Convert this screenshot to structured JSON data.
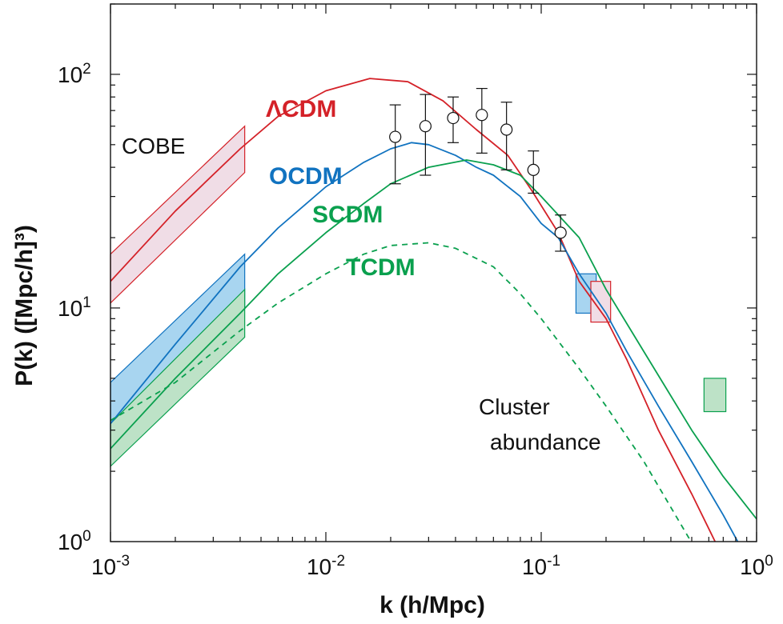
{
  "chart_data": {
    "type": "line",
    "xlabel": "k (h/Mpc)",
    "ylabel": "P(k) ([Mpc/h]³)",
    "xscale": "log",
    "yscale": "log",
    "xlim": [
      0.001,
      1
    ],
    "ylim": [
      1,
      200
    ],
    "x_ticks": [
      {
        "base": "10",
        "exp": "-3",
        "value": 0.001
      },
      {
        "base": "10",
        "exp": "-2",
        "value": 0.01
      },
      {
        "base": "10",
        "exp": "-1",
        "value": 0.1
      },
      {
        "base": "10",
        "exp": "0",
        "value": 1
      }
    ],
    "y_ticks": [
      {
        "base": "10",
        "exp": "0",
        "value": 1
      },
      {
        "base": "10",
        "exp": "1",
        "value": 10
      },
      {
        "base": "10",
        "exp": "2",
        "value": 100
      }
    ],
    "grid": false,
    "colors": {
      "red": "#d42128",
      "blue": "#1173c0",
      "green": "#0aa04e",
      "black": "#111111"
    },
    "series": [
      {
        "name": "ΛCDM",
        "color": "#d42128",
        "dashed": false,
        "x": [
          0.001,
          0.002,
          0.004,
          0.006,
          0.01,
          0.016,
          0.024,
          0.035,
          0.05,
          0.07,
          0.09,
          0.12,
          0.15,
          0.2,
          0.25,
          0.35,
          0.5,
          0.7
        ],
        "y": [
          13,
          26,
          48,
          66,
          85,
          96,
          93,
          77,
          58,
          45,
          32,
          21,
          13,
          9,
          6,
          3,
          1.6,
          0.85
        ]
      },
      {
        "name": "OCDM",
        "color": "#1173c0",
        "dashed": false,
        "x": [
          0.001,
          0.002,
          0.004,
          0.006,
          0.01,
          0.015,
          0.02,
          0.025,
          0.03,
          0.04,
          0.05,
          0.06,
          0.08,
          0.1,
          0.12,
          0.15,
          0.2,
          0.25,
          0.35,
          0.5,
          0.7,
          0.9
        ],
        "y": [
          3.2,
          7,
          15,
          22,
          33,
          42,
          48,
          51,
          50,
          45,
          40,
          37,
          30,
          23,
          20,
          14,
          9.5,
          6.5,
          3.8,
          2.2,
          1.3,
          0.85
        ]
      },
      {
        "name": "SCDM",
        "color": "#0aa04e",
        "dashed": false,
        "x": [
          0.001,
          0.002,
          0.004,
          0.006,
          0.01,
          0.015,
          0.02,
          0.03,
          0.045,
          0.06,
          0.08,
          0.1,
          0.15,
          0.2,
          0.3,
          0.5,
          0.7,
          1.0
        ],
        "y": [
          2.5,
          5,
          9.5,
          14,
          21,
          28,
          34,
          40,
          43,
          41,
          37,
          30,
          20,
          12,
          6.5,
          3,
          1.9,
          1.25
        ]
      },
      {
        "name": "TCDM",
        "color": "#0aa04e",
        "dashed": true,
        "x": [
          0.001,
          0.002,
          0.004,
          0.006,
          0.01,
          0.015,
          0.02,
          0.03,
          0.04,
          0.06,
          0.08,
          0.1,
          0.15,
          0.2,
          0.3,
          0.4,
          0.55
        ],
        "y": [
          3.3,
          4.8,
          8,
          10.5,
          14,
          17,
          18.5,
          19,
          18,
          15,
          11.5,
          9,
          5.5,
          3.8,
          2.2,
          1.4,
          0.85
        ]
      }
    ],
    "points": [
      {
        "x": 0.021,
        "y": 54,
        "ylow": 34,
        "yhigh": 74
      },
      {
        "x": 0.029,
        "y": 60,
        "ylow": 37,
        "yhigh": 82
      },
      {
        "x": 0.039,
        "y": 65,
        "ylow": 51,
        "yhigh": 80
      },
      {
        "x": 0.053,
        "y": 67,
        "ylow": 46,
        "yhigh": 87
      },
      {
        "x": 0.069,
        "y": 58,
        "ylow": 39,
        "yhigh": 76
      },
      {
        "x": 0.092,
        "y": 39,
        "ylow": 31,
        "yhigh": 47
      },
      {
        "x": 0.123,
        "y": 21,
        "ylow": 17.5,
        "yhigh": 25
      }
    ],
    "bands": [
      {
        "color": "#d42128",
        "fill": "#f0dde6",
        "x": [
          0.001,
          0.0042
        ],
        "y_low": [
          10.5,
          38
        ],
        "y_high": [
          17,
          60
        ]
      },
      {
        "color": "#1173c0",
        "fill": "#a8d5f0",
        "x": [
          0.001,
          0.0042
        ],
        "y_low": [
          3.0,
          10
        ],
        "y_high": [
          4.8,
          17
        ]
      },
      {
        "color": "#0aa04e",
        "fill": "#bde2c7",
        "x": [
          0.001,
          0.0042
        ],
        "y_low": [
          2.1,
          7.5
        ],
        "y_high": [
          3.2,
          12
        ]
      }
    ],
    "boxes": [
      {
        "color": "#1173c0",
        "fill": "#a8d5f0",
        "x": [
          0.145,
          0.18
        ],
        "y": [
          9.5,
          14
        ]
      },
      {
        "color": "#d42128",
        "fill": "#f0dde6",
        "x": [
          0.17,
          0.21
        ],
        "y": [
          8.7,
          13
        ]
      },
      {
        "color": "#0aa04e",
        "fill": "#bde2c7",
        "x": [
          0.57,
          0.72
        ],
        "y": [
          3.6,
          5.0
        ]
      }
    ],
    "labels": {
      "lcdm": "ΛCDM",
      "ocdm": "OCDM",
      "scdm": "SCDM",
      "tcdm": "TCDM",
      "cobe": "COBE",
      "cluster_line1": "Cluster",
      "cluster_line2": "abundance"
    }
  }
}
